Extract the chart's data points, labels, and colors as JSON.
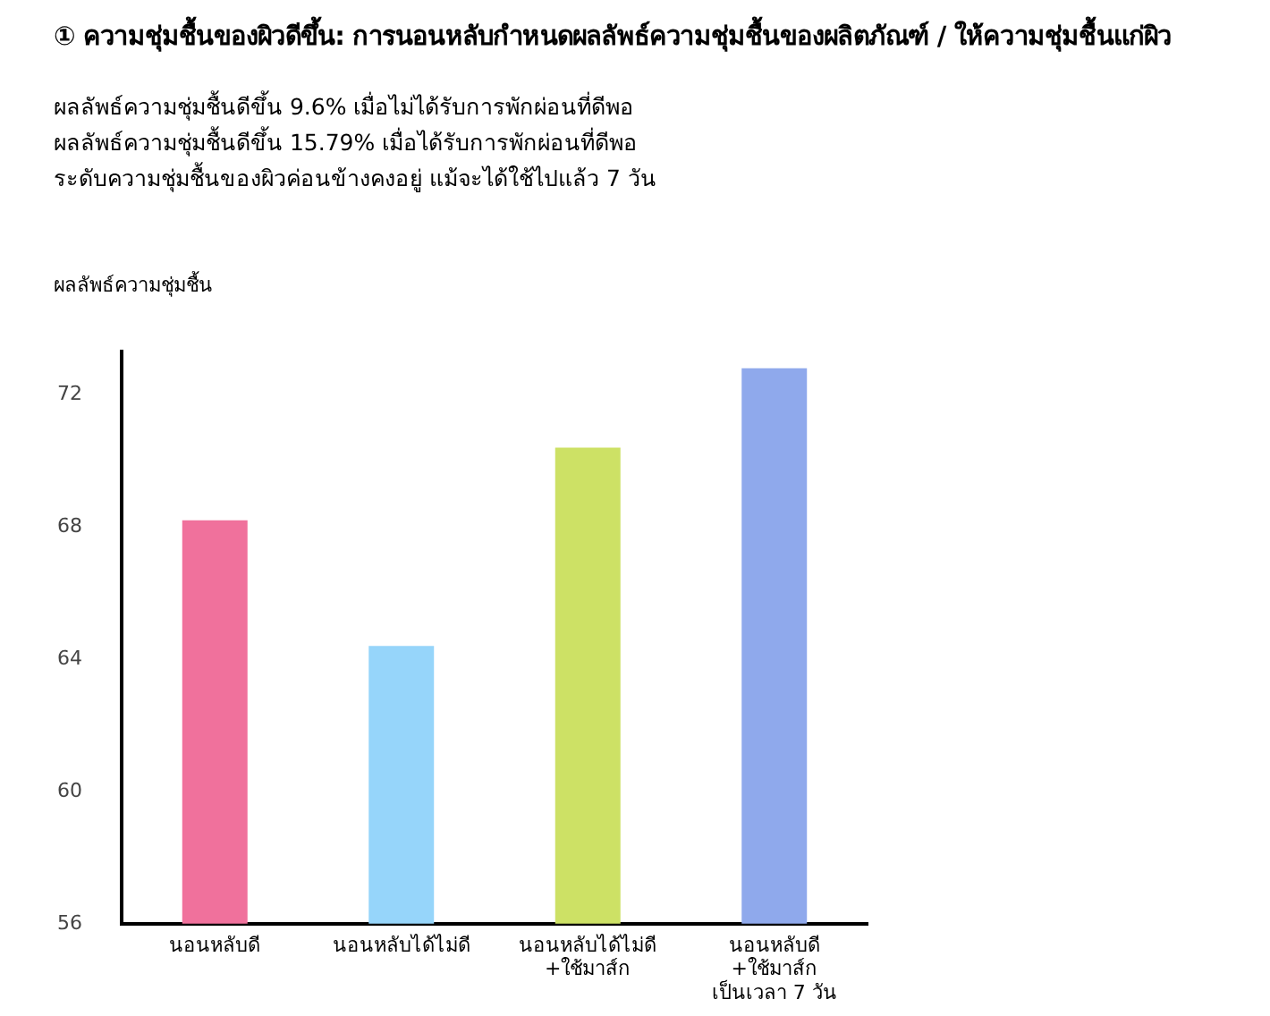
{
  "chart_data": {
    "type": "bar",
    "title": "① ความชุ่มชื้นของผิวดีขึ้น: การนอนหลับกำหนดผลลัพธ์ความชุ่มชื้นของผลิตภัณฑ์ / ให้ความชุ่มชื้นแก่ผิว",
    "subtitle": "ผลลัพธ์ความชุ่มชื้นดีขึ้น 9.6% เมื่อไม่ได้รับการพักผ่อนที่ดีพอ\nผลลัพธ์ความชุ่มชื้นดีขึ้น 15.79% เมื่อได้รับการพักผ่อนที่ดีพอ\nระดับความชุ่มชื้นของผิวค่อนข้างคงอยู่ แม้จะได้ใช้ไปแล้ว 7 วัน",
    "ylabel": "ผลลัพธ์ความชุ่มชื้น",
    "categories": [
      "นอนหลับดี",
      "นอนหลับได้ไม่ดี",
      "นอนหลับได้ไม่ดี\n+ใช้มาส์ก",
      "นอนหลับดี\n+ใช้มาส์ก\nเป็นเวลา 7 วัน"
    ],
    "values": [
      68.2,
      64.4,
      70.4,
      72.8
    ],
    "colors": [
      "#f0719c",
      "#96d5fa",
      "#cde165",
      "#8fa9ec"
    ],
    "ylim": [
      56,
      73.3
    ],
    "yticks": [
      56,
      60,
      64,
      68,
      72
    ],
    "grid": false,
    "legend": false
  }
}
